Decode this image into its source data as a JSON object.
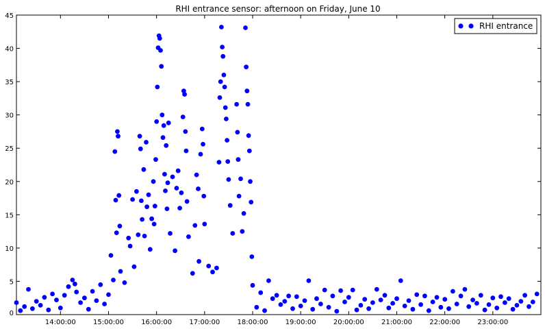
{
  "chart_data": {
    "type": "scatter",
    "title": "RHI entrance sensor: afternoon on Friday, June 10",
    "xlabel": "",
    "ylabel": "",
    "xlim": [
      "13:05:00",
      "24:00:00"
    ],
    "ylim": [
      0,
      45
    ],
    "x_ticks": [
      "14:00:00",
      "15:00:00",
      "16:00:00",
      "17:00:00",
      "18:00:00",
      "19:00:00",
      "20:00:00",
      "21:00:00",
      "22:00:00",
      "23:00:00"
    ],
    "y_ticks": [
      0,
      5,
      10,
      15,
      20,
      25,
      30,
      35,
      40,
      45
    ],
    "legend": {
      "position": "top-right"
    },
    "color": "#0000ff",
    "series": [
      {
        "name": "RHI entrance",
        "points": [
          [
            "13:05",
            1.8
          ],
          [
            "13:10",
            0.6
          ],
          [
            "13:15",
            1.2
          ],
          [
            "13:20",
            3.8
          ],
          [
            "13:25",
            0.9
          ],
          [
            "13:30",
            2.0
          ],
          [
            "13:35",
            1.4
          ],
          [
            "13:40",
            2.6
          ],
          [
            "13:45",
            0.7
          ],
          [
            "13:50",
            3.1
          ],
          [
            "13:55",
            2.2
          ],
          [
            "14:00",
            1.0
          ],
          [
            "14:05",
            2.9
          ],
          [
            "14:10",
            4.2
          ],
          [
            "14:15",
            5.2
          ],
          [
            "14:18",
            4.6
          ],
          [
            "14:20",
            3.4
          ],
          [
            "14:25",
            1.8
          ],
          [
            "14:30",
            2.5
          ],
          [
            "14:35",
            0.8
          ],
          [
            "14:40",
            3.5
          ],
          [
            "14:45",
            2.1
          ],
          [
            "14:50",
            4.5
          ],
          [
            "14:55",
            1.6
          ],
          [
            "15:00",
            3.0
          ],
          [
            "15:03",
            8.9
          ],
          [
            "15:06",
            5.2
          ],
          [
            "15:08",
            24.5
          ],
          [
            "15:09",
            17.2
          ],
          [
            "15:10",
            12.3
          ],
          [
            "15:11",
            27.5
          ],
          [
            "15:12",
            26.8
          ],
          [
            "15:13",
            17.9
          ],
          [
            "15:14",
            13.3
          ],
          [
            "15:15",
            6.5
          ],
          [
            "15:20",
            4.8
          ],
          [
            "15:25",
            11.5
          ],
          [
            "15:27",
            10.3
          ],
          [
            "15:30",
            17.3
          ],
          [
            "15:32",
            7.2
          ],
          [
            "15:35",
            18.5
          ],
          [
            "15:37",
            12.0
          ],
          [
            "15:39",
            26.8
          ],
          [
            "15:40",
            24.9
          ],
          [
            "15:41",
            17.1
          ],
          [
            "15:42",
            14.3
          ],
          [
            "15:44",
            21.8
          ],
          [
            "15:45",
            11.8
          ],
          [
            "15:47",
            25.9
          ],
          [
            "15:48",
            16.2
          ],
          [
            "15:50",
            18.0
          ],
          [
            "15:52",
            9.8
          ],
          [
            "15:54",
            14.4
          ],
          [
            "15:56",
            20.0
          ],
          [
            "15:57",
            13.6
          ],
          [
            "15:58",
            16.3
          ],
          [
            "15:59",
            23.3
          ],
          [
            "16:00",
            29.0
          ],
          [
            "16:01",
            34.2
          ],
          [
            "16:02",
            40.1
          ],
          [
            "16:03",
            41.9
          ],
          [
            "16:04",
            41.5
          ],
          [
            "16:05",
            39.7
          ],
          [
            "16:06",
            37.3
          ],
          [
            "16:07",
            30.0
          ],
          [
            "16:08",
            26.6
          ],
          [
            "16:09",
            28.4
          ],
          [
            "16:10",
            21.1
          ],
          [
            "16:11",
            18.6
          ],
          [
            "16:12",
            25.4
          ],
          [
            "16:13",
            15.9
          ],
          [
            "16:14",
            19.8
          ],
          [
            "16:15",
            28.8
          ],
          [
            "16:17",
            12.2
          ],
          [
            "16:20",
            20.7
          ],
          [
            "16:23",
            9.6
          ],
          [
            "16:25",
            19.0
          ],
          [
            "16:27",
            21.6
          ],
          [
            "16:29",
            16.0
          ],
          [
            "16:31",
            18.3
          ],
          [
            "16:33",
            29.7
          ],
          [
            "16:34",
            33.6
          ],
          [
            "16:35",
            33.1
          ],
          [
            "16:36",
            27.5
          ],
          [
            "16:37",
            24.6
          ],
          [
            "16:38",
            17.0
          ],
          [
            "16:40",
            11.7
          ],
          [
            "16:45",
            6.2
          ],
          [
            "16:48",
            13.4
          ],
          [
            "16:50",
            21.0
          ],
          [
            "16:52",
            18.9
          ],
          [
            "16:53",
            8.0
          ],
          [
            "16:55",
            24.1
          ],
          [
            "16:57",
            27.9
          ],
          [
            "16:58",
            25.6
          ],
          [
            "16:59",
            17.8
          ],
          [
            "17:00",
            13.6
          ],
          [
            "17:05",
            7.3
          ],
          [
            "17:10",
            6.4
          ],
          [
            "17:15",
            7.0
          ],
          [
            "17:18",
            22.9
          ],
          [
            "17:19",
            32.6
          ],
          [
            "17:20",
            35.0
          ],
          [
            "17:21",
            43.2
          ],
          [
            "17:22",
            40.2
          ],
          [
            "17:23",
            38.8
          ],
          [
            "17:24",
            36.0
          ],
          [
            "17:25",
            34.2
          ],
          [
            "17:26",
            31.1
          ],
          [
            "17:27",
            29.4
          ],
          [
            "17:28",
            26.2
          ],
          [
            "17:29",
            23.0
          ],
          [
            "17:30",
            20.3
          ],
          [
            "17:32",
            16.4
          ],
          [
            "17:35",
            12.2
          ],
          [
            "17:40",
            31.6
          ],
          [
            "17:41",
            27.4
          ],
          [
            "17:42",
            23.3
          ],
          [
            "17:43",
            17.8
          ],
          [
            "17:45",
            20.4
          ],
          [
            "17:47",
            12.5
          ],
          [
            "17:49",
            15.2
          ],
          [
            "17:51",
            43.1
          ],
          [
            "17:52",
            37.2
          ],
          [
            "17:53",
            33.6
          ],
          [
            "17:54",
            31.6
          ],
          [
            "17:55",
            26.9
          ],
          [
            "17:56",
            24.6
          ],
          [
            "17:57",
            20.0
          ],
          [
            "17:58",
            16.9
          ],
          [
            "17:59",
            8.7
          ],
          [
            "18:00",
            4.4
          ],
          [
            "18:05",
            1.1
          ],
          [
            "18:10",
            3.3
          ],
          [
            "18:15",
            0.6
          ],
          [
            "18:20",
            5.1
          ],
          [
            "18:25",
            2.4
          ],
          [
            "18:30",
            2.9
          ],
          [
            "18:35",
            1.5
          ],
          [
            "18:40",
            2.0
          ],
          [
            "18:45",
            2.8
          ],
          [
            "18:50",
            0.9
          ],
          [
            "18:55",
            2.7
          ],
          [
            "19:00",
            1.3
          ],
          [
            "19:05",
            2.1
          ],
          [
            "19:10",
            5.1
          ],
          [
            "19:15",
            0.8
          ],
          [
            "19:20",
            2.4
          ],
          [
            "19:25",
            1.6
          ],
          [
            "19:30",
            3.7
          ],
          [
            "19:35",
            1.1
          ],
          [
            "19:40",
            2.8
          ],
          [
            "19:45",
            0.5
          ],
          [
            "19:50",
            3.6
          ],
          [
            "19:55",
            1.9
          ],
          [
            "20:00",
            2.6
          ],
          [
            "20:05",
            3.7
          ],
          [
            "20:10",
            0.7
          ],
          [
            "20:15",
            1.4
          ],
          [
            "20:20",
            2.3
          ],
          [
            "20:25",
            0.9
          ],
          [
            "20:30",
            1.8
          ],
          [
            "20:35",
            3.8
          ],
          [
            "20:40",
            2.2
          ],
          [
            "20:45",
            2.9
          ],
          [
            "20:50",
            1.0
          ],
          [
            "20:55",
            1.7
          ],
          [
            "21:00",
            2.4
          ],
          [
            "21:05",
            5.1
          ],
          [
            "21:10",
            1.3
          ],
          [
            "21:15",
            2.1
          ],
          [
            "21:20",
            0.8
          ],
          [
            "21:25",
            3.0
          ],
          [
            "21:30",
            1.5
          ],
          [
            "21:35",
            2.8
          ],
          [
            "21:40",
            0.6
          ],
          [
            "21:45",
            1.9
          ],
          [
            "21:50",
            2.6
          ],
          [
            "21:55",
            1.1
          ],
          [
            "22:00",
            2.3
          ],
          [
            "22:05",
            0.9
          ],
          [
            "22:10",
            3.5
          ],
          [
            "22:15",
            1.6
          ],
          [
            "22:20",
            2.8
          ],
          [
            "22:25",
            3.8
          ],
          [
            "22:30",
            1.2
          ],
          [
            "22:35",
            2.2
          ],
          [
            "22:40",
            1.7
          ],
          [
            "22:45",
            2.9
          ],
          [
            "22:50",
            0.7
          ],
          [
            "22:55",
            1.5
          ],
          [
            "23:00",
            2.5
          ],
          [
            "23:05",
            1.0
          ],
          [
            "23:10",
            2.7
          ],
          [
            "23:15",
            1.8
          ],
          [
            "23:20",
            2.4
          ],
          [
            "23:25",
            0.8
          ],
          [
            "23:30",
            1.4
          ],
          [
            "23:35",
            2.0
          ],
          [
            "23:40",
            2.9
          ],
          [
            "23:45",
            1.2
          ],
          [
            "23:50",
            1.9
          ],
          [
            "23:55",
            3.1
          ]
        ]
      }
    ]
  }
}
